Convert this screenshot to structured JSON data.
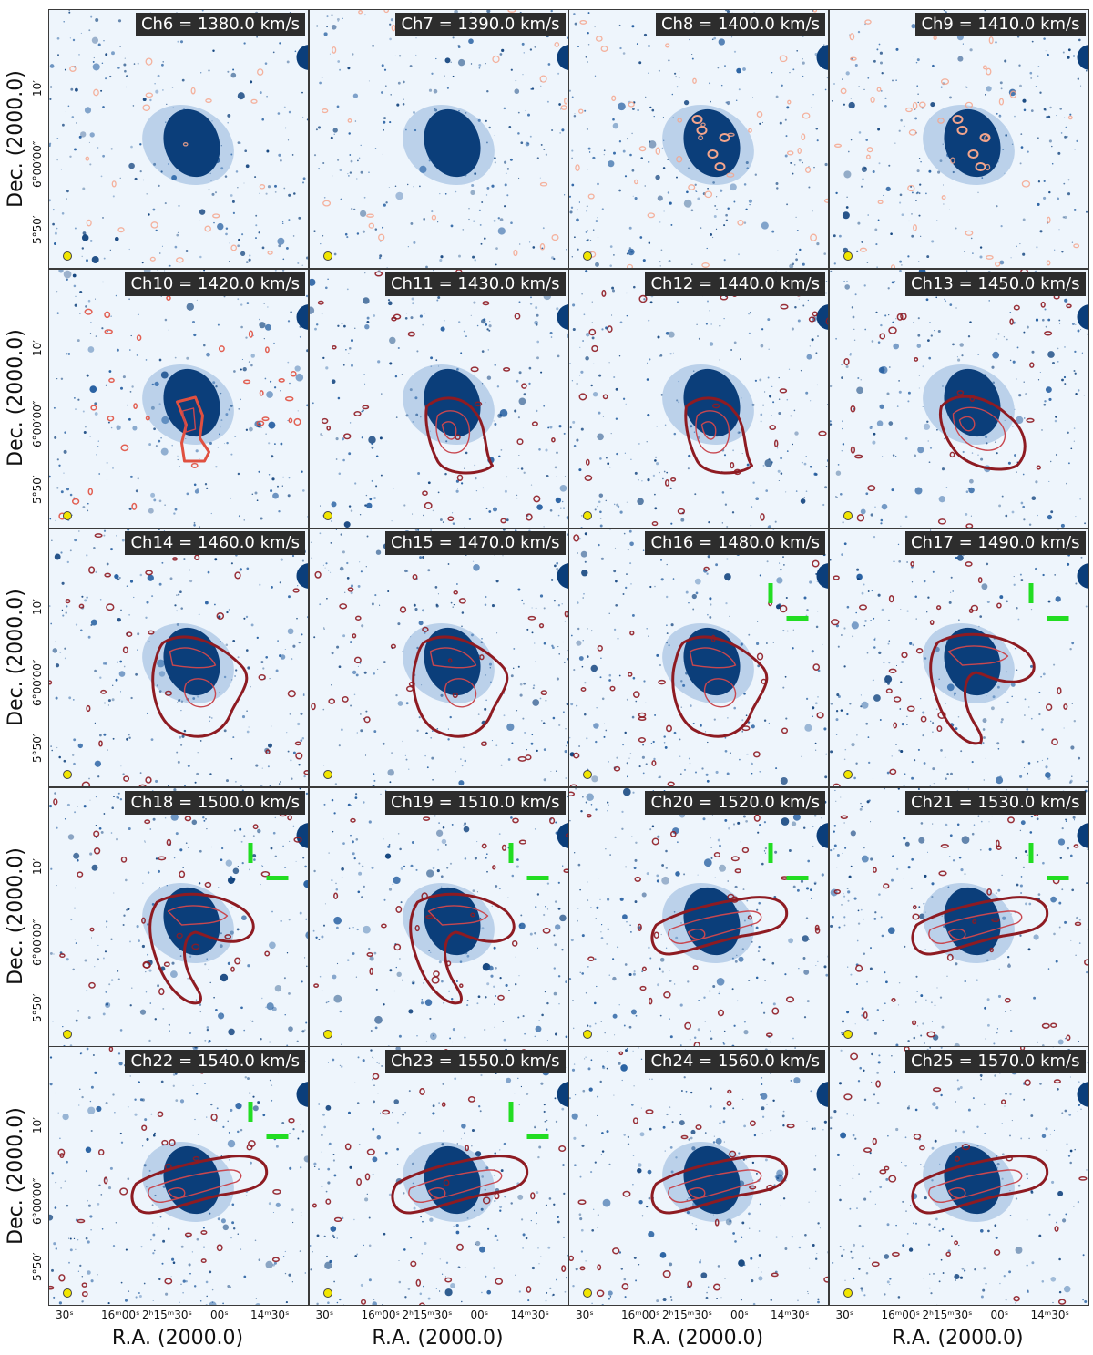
{
  "figure": {
    "ylabel": "Dec. (2000.0)",
    "xlabel": "R.A. (2000.0)",
    "yticks": [
      "10′",
      "6°00′00″",
      "5°50′"
    ],
    "xticks": [
      "30ˢ",
      "16ᵐ00ˢ",
      "2ʰ15ᵐ30ˢ",
      "00ˢ",
      "14ᵐ30ˢ"
    ],
    "colors": {
      "background": "#eef5fc",
      "galaxy": "#0b3e7a",
      "stars": "#1f5a9e",
      "contour_faint": "#f4a58c",
      "contour_mid": "#e05040",
      "contour_dark": "#8e1b22",
      "marker": "#22dd22",
      "label_bg": "#2d2d2d",
      "beam": "#f2e600"
    }
  },
  "panels": [
    {
      "label": "Ch6 = 1380.0 km/s",
      "velocity_kms": 1380.0,
      "contour_style": "faint",
      "hi": "none",
      "marker": false
    },
    {
      "label": "Ch7 = 1390.0 km/s",
      "velocity_kms": 1390.0,
      "contour_style": "faint",
      "hi": "none",
      "marker": false
    },
    {
      "label": "Ch8 = 1400.0 km/s",
      "velocity_kms": 1400.0,
      "contour_style": "faint",
      "hi": "spots",
      "marker": false
    },
    {
      "label": "Ch9 = 1410.0 km/s",
      "velocity_kms": 1410.0,
      "contour_style": "faint",
      "hi": "spots",
      "marker": false
    },
    {
      "label": "Ch10 = 1420.0 km/s",
      "velocity_kms": 1420.0,
      "contour_style": "mid",
      "hi": "tail-s",
      "marker": false
    },
    {
      "label": "Ch11 = 1430.0 km/s",
      "velocity_kms": 1430.0,
      "contour_style": "dark",
      "hi": "blob-s",
      "marker": false
    },
    {
      "label": "Ch12 = 1440.0 km/s",
      "velocity_kms": 1440.0,
      "contour_style": "dark",
      "hi": "blob-s",
      "marker": false
    },
    {
      "label": "Ch13 = 1450.0 km/s",
      "velocity_kms": 1450.0,
      "contour_style": "dark",
      "hi": "blob-se",
      "marker": false
    },
    {
      "label": "Ch14 = 1460.0 km/s",
      "velocity_kms": 1460.0,
      "contour_style": "dark",
      "hi": "ring",
      "marker": false
    },
    {
      "label": "Ch15 = 1470.0 km/s",
      "velocity_kms": 1470.0,
      "contour_style": "dark",
      "hi": "ring",
      "marker": false
    },
    {
      "label": "Ch16 = 1480.0 km/s",
      "velocity_kms": 1480.0,
      "contour_style": "dark",
      "hi": "ring",
      "marker": true
    },
    {
      "label": "Ch17 = 1490.0 km/s",
      "velocity_kms": 1490.0,
      "contour_style": "dark",
      "hi": "arc",
      "marker": true
    },
    {
      "label": "Ch18 = 1500.0 km/s",
      "velocity_kms": 1500.0,
      "contour_style": "dark",
      "hi": "arc",
      "marker": true
    },
    {
      "label": "Ch19 = 1510.0 km/s",
      "velocity_kms": 1510.0,
      "contour_style": "dark",
      "hi": "arc",
      "marker": true
    },
    {
      "label": "Ch20 = 1520.0 km/s",
      "velocity_kms": 1520.0,
      "contour_style": "dark",
      "hi": "band",
      "marker": true
    },
    {
      "label": "Ch21 = 1530.0 km/s",
      "velocity_kms": 1530.0,
      "contour_style": "dark",
      "hi": "band",
      "marker": true
    },
    {
      "label": "Ch22 = 1540.0 km/s",
      "velocity_kms": 1540.0,
      "contour_style": "dark",
      "hi": "band",
      "marker": true
    },
    {
      "label": "Ch23 = 1550.0 km/s",
      "velocity_kms": 1550.0,
      "contour_style": "dark",
      "hi": "band",
      "marker": true
    },
    {
      "label": "Ch24 = 1560.0 km/s",
      "velocity_kms": 1560.0,
      "contour_style": "dark",
      "hi": "band",
      "marker": false
    },
    {
      "label": "Ch25 = 1570.0 km/s",
      "velocity_kms": 1570.0,
      "contour_style": "dark",
      "hi": "band",
      "marker": false
    }
  ]
}
